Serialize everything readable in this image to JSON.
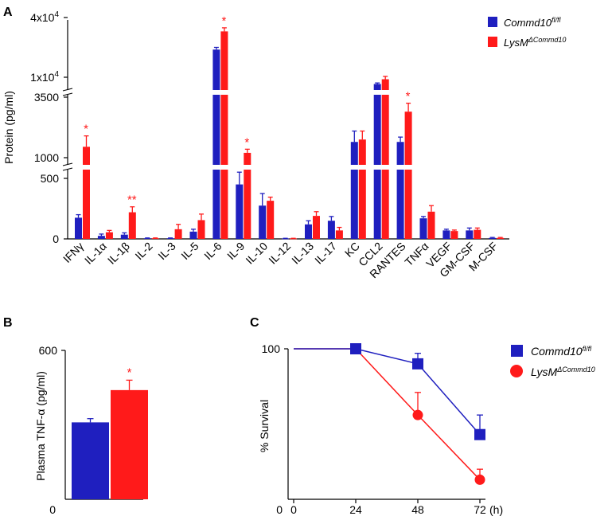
{
  "colors": {
    "series_a": "#1f1fbf",
    "series_b": "#ff1a1a",
    "star": "#ff1a1a",
    "axis": "#000000"
  },
  "chart_data": [
    {
      "panel": "A",
      "type": "bar",
      "ylabel": "Protein (pg/ml)",
      "yticks": [
        {
          "base": "4x10",
          "exp": "4",
          "value": 40000
        },
        {
          "base": "1x10",
          "exp": "4",
          "value": 10000
        },
        {
          "base": "3500",
          "exp": "",
          "value": 3500
        },
        {
          "base": "1000",
          "exp": "",
          "value": 1000
        },
        {
          "base": "500",
          "exp": "",
          "value": 500
        },
        {
          "base": "0",
          "exp": "",
          "value": 0
        }
      ],
      "categories": [
        "IFNγ",
        "IL-1α",
        "IL-1β",
        "IL-2",
        "IL-3",
        "IL-5",
        "IL-6",
        "IL-9",
        "IL-10",
        "IL-12",
        "IL-13",
        "IL-17",
        "KC",
        "CCL2",
        "RANTES",
        "TNFα",
        "VEGF",
        "GM-CSF",
        "M-CSF"
      ],
      "legend": [
        {
          "main": "Commd10",
          "sup": "fl/fl"
        },
        {
          "main": "LysM",
          "sup": "ΔCommd10"
        }
      ],
      "series": [
        {
          "name": "Commd10 fl/fl",
          "values": [
            175,
            25,
            35,
            5,
            5,
            60,
            19000,
            450,
            275,
            3,
            120,
            150,
            1650,
            7000,
            1650,
            170,
            70,
            70,
            8
          ],
          "errors": [
            25,
            15,
            15,
            3,
            3,
            20,
            1000,
            200,
            100,
            2,
            30,
            35,
            450,
            400,
            200,
            15,
            10,
            20,
            4
          ]
        },
        {
          "name": "LysM ΔCommd10",
          "values": [
            1450,
            55,
            220,
            5,
            80,
            155,
            29000,
            1200,
            315,
            3,
            190,
            70,
            1750,
            9000,
            2900,
            225,
            65,
            75,
            8
          ],
          "errors": [
            450,
            15,
            45,
            3,
            40,
            50,
            2500,
            150,
            30,
            2,
            35,
            25,
            350,
            1200,
            350,
            50,
            8,
            15,
            4
          ]
        }
      ],
      "significance": [
        "*",
        "",
        "**",
        "",
        "",
        "",
        "*",
        "*",
        "",
        "",
        "",
        "",
        "",
        "",
        "*",
        "",
        "",
        "",
        ""
      ]
    },
    {
      "panel": "B",
      "type": "bar",
      "ylabel": "Plasma TNF-α (pg/ml)",
      "yticks": [
        {
          "label": "600",
          "value": 600
        },
        {
          "label": "0",
          "value": 0
        }
      ],
      "ylim": [
        0,
        600
      ],
      "series": [
        {
          "name": "Commd10 fl/fl",
          "values": [
            310
          ],
          "errors": [
            15
          ]
        },
        {
          "name": "LysM ΔCommd10",
          "values": [
            440
          ],
          "errors": [
            40
          ]
        }
      ],
      "significance": [
        "*"
      ]
    },
    {
      "panel": "C",
      "type": "line",
      "ylabel": "% Survival",
      "xunit": "(h)",
      "x": [
        0,
        24,
        48,
        72
      ],
      "xticks": [
        "0",
        "24",
        "48",
        "72"
      ],
      "yticks": [
        {
          "label": "100",
          "value": 100
        },
        {
          "label": "0",
          "value": 0
        }
      ],
      "ylim": [
        0,
        100
      ],
      "legend": [
        {
          "main": "Commd10",
          "sup": "fl/fl"
        },
        {
          "main": "LysM",
          "sup": "ΔCommd10"
        }
      ],
      "series": [
        {
          "name": "Commd10 fl/fl",
          "marker": "square",
          "values": [
            100,
            100,
            90,
            43
          ],
          "errors": [
            0,
            0,
            7,
            13
          ]
        },
        {
          "name": "LysM ΔCommd10",
          "marker": "circle",
          "values": [
            100,
            100,
            56,
            13
          ],
          "errors": [
            0,
            0,
            15,
            7
          ]
        }
      ]
    }
  ]
}
